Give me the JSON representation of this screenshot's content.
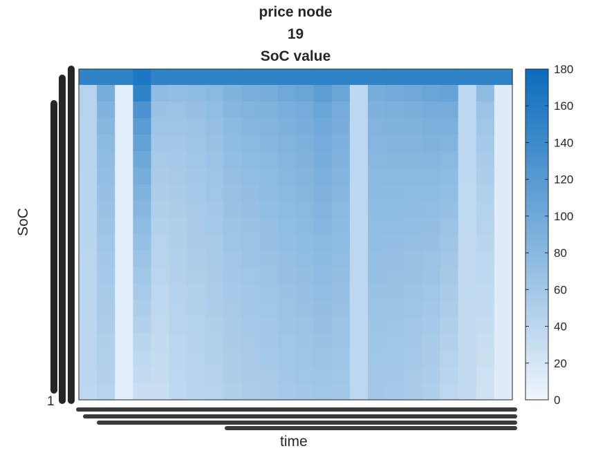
{
  "chart_data": {
    "type": "heatmap",
    "title": [
      "price node",
      "19",
      "SoC value"
    ],
    "xlabel": "time",
    "ylabel": "SoC",
    "y_tick_bottom": "1",
    "colorbar": {
      "min": 0,
      "max": 180,
      "ticks": [
        0,
        20,
        40,
        60,
        80,
        100,
        120,
        140,
        160,
        180
      ],
      "color_low": "#eef5fc",
      "color_high": "#0b6cbd"
    },
    "columns": 24,
    "rows": 20,
    "top_row_value": 150,
    "column_profiles": [
      {
        "top": 45,
        "bottom": 40
      },
      {
        "top": 95,
        "bottom": 45
      },
      {
        "top": 10,
        "bottom": 10
      },
      {
        "top": 150,
        "bottom": 30
      },
      {
        "top": 75,
        "bottom": 30
      },
      {
        "top": 72,
        "bottom": 38
      },
      {
        "top": 75,
        "bottom": 42
      },
      {
        "top": 80,
        "bottom": 45
      },
      {
        "top": 88,
        "bottom": 50
      },
      {
        "top": 92,
        "bottom": 52
      },
      {
        "top": 95,
        "bottom": 55
      },
      {
        "top": 100,
        "bottom": 58
      },
      {
        "top": 105,
        "bottom": 60
      },
      {
        "top": 115,
        "bottom": 62
      },
      {
        "top": 105,
        "bottom": 60
      },
      {
        "top": 40,
        "bottom": 40
      },
      {
        "top": 95,
        "bottom": 60
      },
      {
        "top": 98,
        "bottom": 58
      },
      {
        "top": 100,
        "bottom": 55
      },
      {
        "top": 105,
        "bottom": 50
      },
      {
        "top": 108,
        "bottom": 40
      },
      {
        "top": 40,
        "bottom": 35
      },
      {
        "top": 75,
        "bottom": 25
      },
      {
        "top": 12,
        "bottom": 12
      }
    ]
  }
}
